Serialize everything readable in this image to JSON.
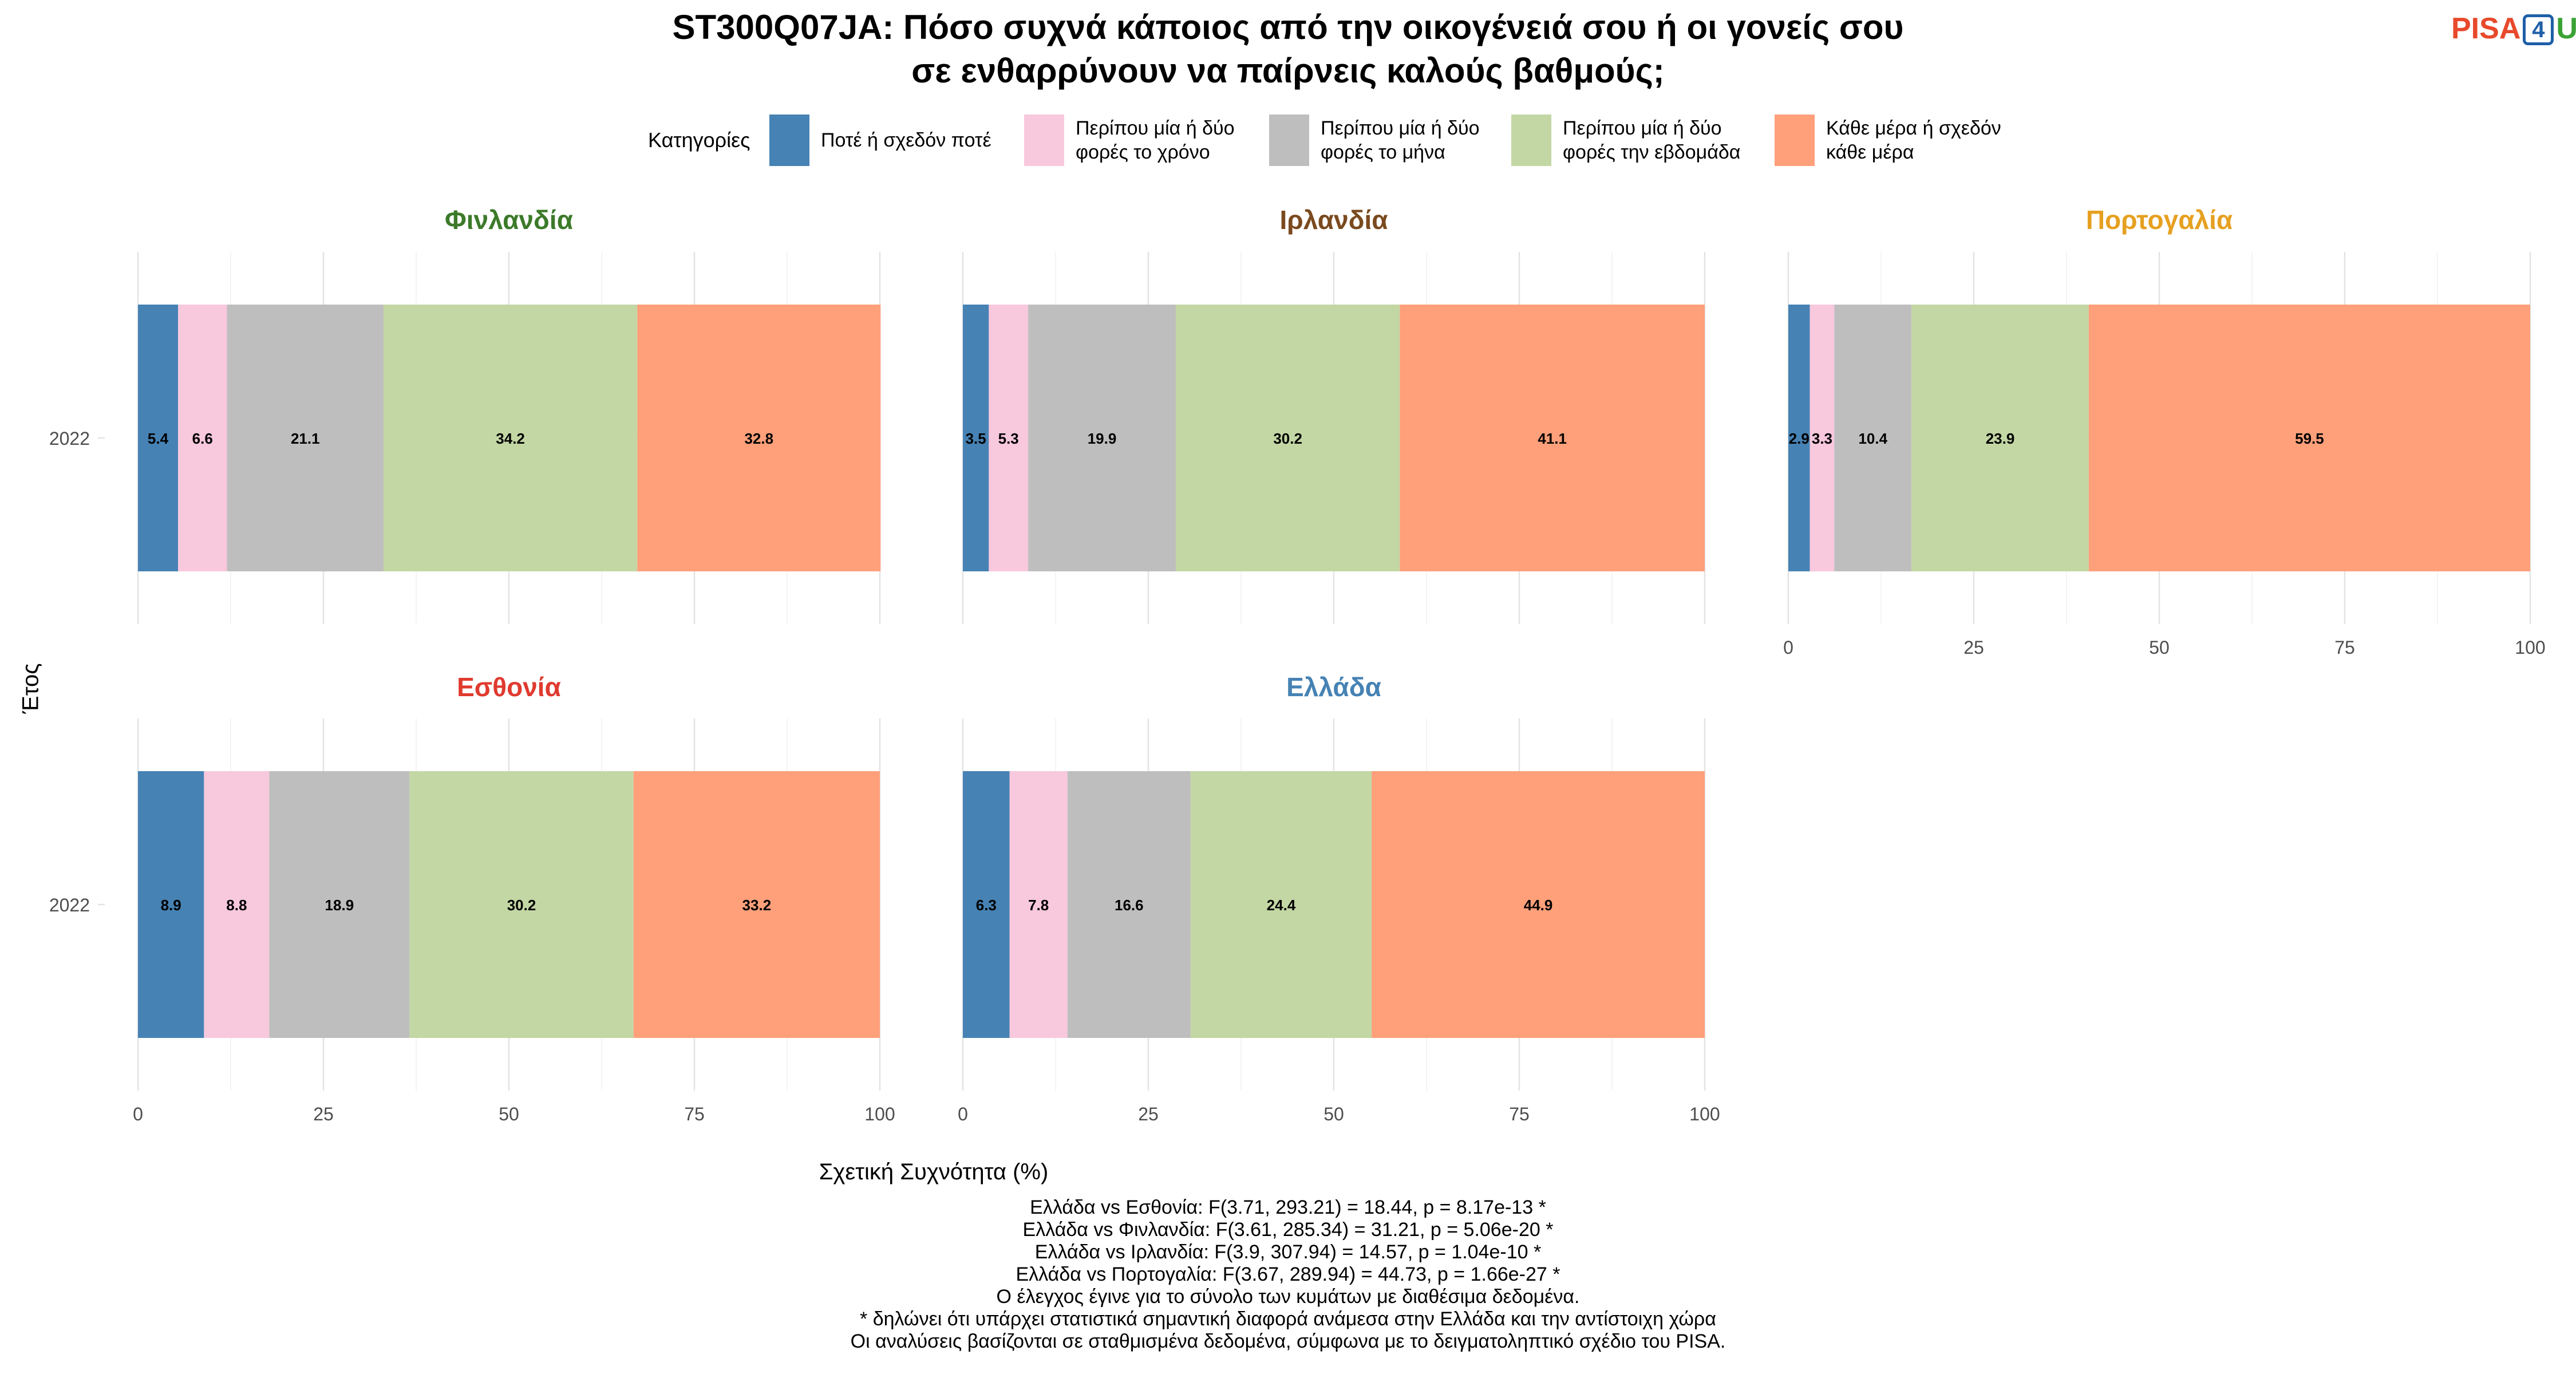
{
  "title_line1": "ST300Q07JA: Πόσο συχνά κάποιος από την οικογένειά σου ή οι γονείς σου",
  "title_line2": "σε ενθαρρύνουν να παίρνεις καλούς βαθμούς;",
  "logo": {
    "pisa": "PISA",
    "four": "4",
    "u": "U"
  },
  "legend": {
    "title": "Κατηγορίες",
    "items": [
      {
        "label": "Ποτέ ή σχεδόν ποτέ",
        "color": "#4682b4"
      },
      {
        "label": "Περίπου μία ή δύο φορές το χρόνο",
        "color": "#f8c8dc"
      },
      {
        "label": "Περίπου μία ή δύο φορές το μήνα",
        "color": "#bebebe"
      },
      {
        "label": "Περίπου μία ή δύο φορές την εβδομάδα",
        "color": "#c3d7a4"
      },
      {
        "label": "Κάθε μέρα ή σχεδόν κάθε μέρα",
        "color": "#ffa07a"
      }
    ]
  },
  "chart_data": {
    "type": "bar",
    "orientation": "horizontal",
    "stacked": true,
    "xlabel": "Σχετική Συχνότητα (%)",
    "ylabel": "Έτος",
    "xlim": [
      0,
      100
    ],
    "xticks": [
      "0",
      "25",
      "50",
      "75",
      "100"
    ],
    "categories": [
      "2022"
    ],
    "grid": true,
    "legend_position": "top",
    "panels": [
      {
        "country": "Φινλανδία",
        "color": "#3c7a2a",
        "year": "2022",
        "values": [
          5.4,
          6.6,
          21.1,
          34.2,
          32.8
        ]
      },
      {
        "country": "Ιρλανδία",
        "color": "#7a4a1e",
        "year": "2022",
        "values": [
          3.5,
          5.3,
          19.9,
          30.2,
          41.1
        ]
      },
      {
        "country": "Πορτογαλία",
        "color": "#e6a020",
        "year": "2022",
        "values": [
          2.9,
          3.3,
          10.4,
          23.9,
          59.5
        ]
      },
      {
        "country": "Εσθονία",
        "color": "#e03a2f",
        "year": "2022",
        "values": [
          8.9,
          8.8,
          18.9,
          30.2,
          33.2
        ]
      },
      {
        "country": "Ελλάδα",
        "color": "#4682b4",
        "year": "2022",
        "values": [
          6.3,
          7.8,
          16.6,
          24.4,
          44.9
        ]
      }
    ]
  },
  "footer": [
    "Ελλάδα vs Εσθονία: F(3.71, 293.21) = 18.44, p = 8.17e-13 *",
    "Ελλάδα vs Φινλανδία: F(3.61, 285.34) = 31.21, p = 5.06e-20 *",
    "Ελλάδα vs Ιρλανδία: F(3.9, 307.94) = 14.57, p = 1.04e-10 *",
    "Ελλάδα vs Πορτογαλία: F(3.67, 289.94) = 44.73, p = 1.66e-27 *",
    "Ο έλεγχος έγινε για το σύνολο των κυμάτων με διαθέσιμα δεδομένα.",
    "* δηλώνει ότι υπάρχει στατιστικά σημαντική διαφορά ανάμεσα στην Ελλάδα και την αντίστοιχη χώρα",
    "Οι αναλύσεις βασίζονται σε σταθμισμένα δεδομένα, σύμφωνα με το δειγματοληπτικό σχέδιο του PISA."
  ]
}
